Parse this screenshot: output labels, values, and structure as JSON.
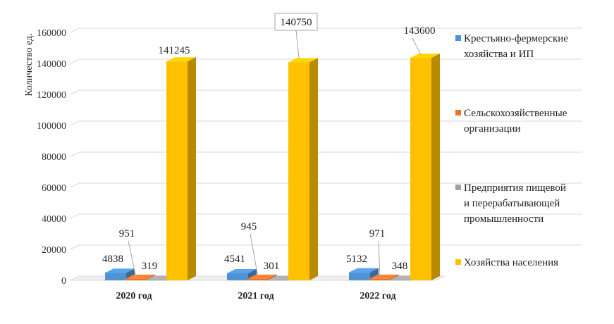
{
  "chart_data": {
    "type": "bar",
    "title": "",
    "xlabel": "",
    "ylabel": "Количество ед.",
    "ylim": [
      0,
      160000
    ],
    "yticks": [
      0,
      20000,
      40000,
      60000,
      80000,
      100000,
      120000,
      140000,
      160000
    ],
    "grid": true,
    "legend_position": "right",
    "categories": [
      "2020 год",
      "2021 год",
      "2022 год"
    ],
    "series": [
      {
        "name": "Крестьяно-фермерские хозяйства и ИП",
        "color": "#4f93d4",
        "values": [
          4838,
          4541,
          5132
        ]
      },
      {
        "name": "Сельскохозяйственные организации",
        "color": "#e8742c",
        "values": [
          951,
          945,
          971
        ]
      },
      {
        "name": "Предприятия пищевой и перерабатывающей промышленности",
        "color": "#a0a0a0",
        "values": [
          319,
          301,
          348
        ]
      },
      {
        "name": "Хозяйства населения",
        "color": "#ffc000",
        "values": [
          141245,
          140750,
          143600
        ]
      }
    ],
    "data_labels": [
      [
        "4838",
        "4541",
        "5132"
      ],
      [
        "951",
        "945",
        "971"
      ],
      [
        "319",
        "301",
        "348"
      ],
      [
        "141245",
        "140750",
        "143600"
      ]
    ]
  },
  "legend": {
    "items": [
      {
        "line1": "Крестьяно-фермерские",
        "line2": "хозяйства и ИП",
        "line3": ""
      },
      {
        "line1": "Сельскохозяйственные",
        "line2": "организации",
        "line3": ""
      },
      {
        "line1": "Предприятия пищевой",
        "line2": "и перерабатывающей",
        "line3": "промышленности"
      },
      {
        "line1": "Хозяйства населения",
        "line2": "",
        "line3": ""
      }
    ]
  }
}
